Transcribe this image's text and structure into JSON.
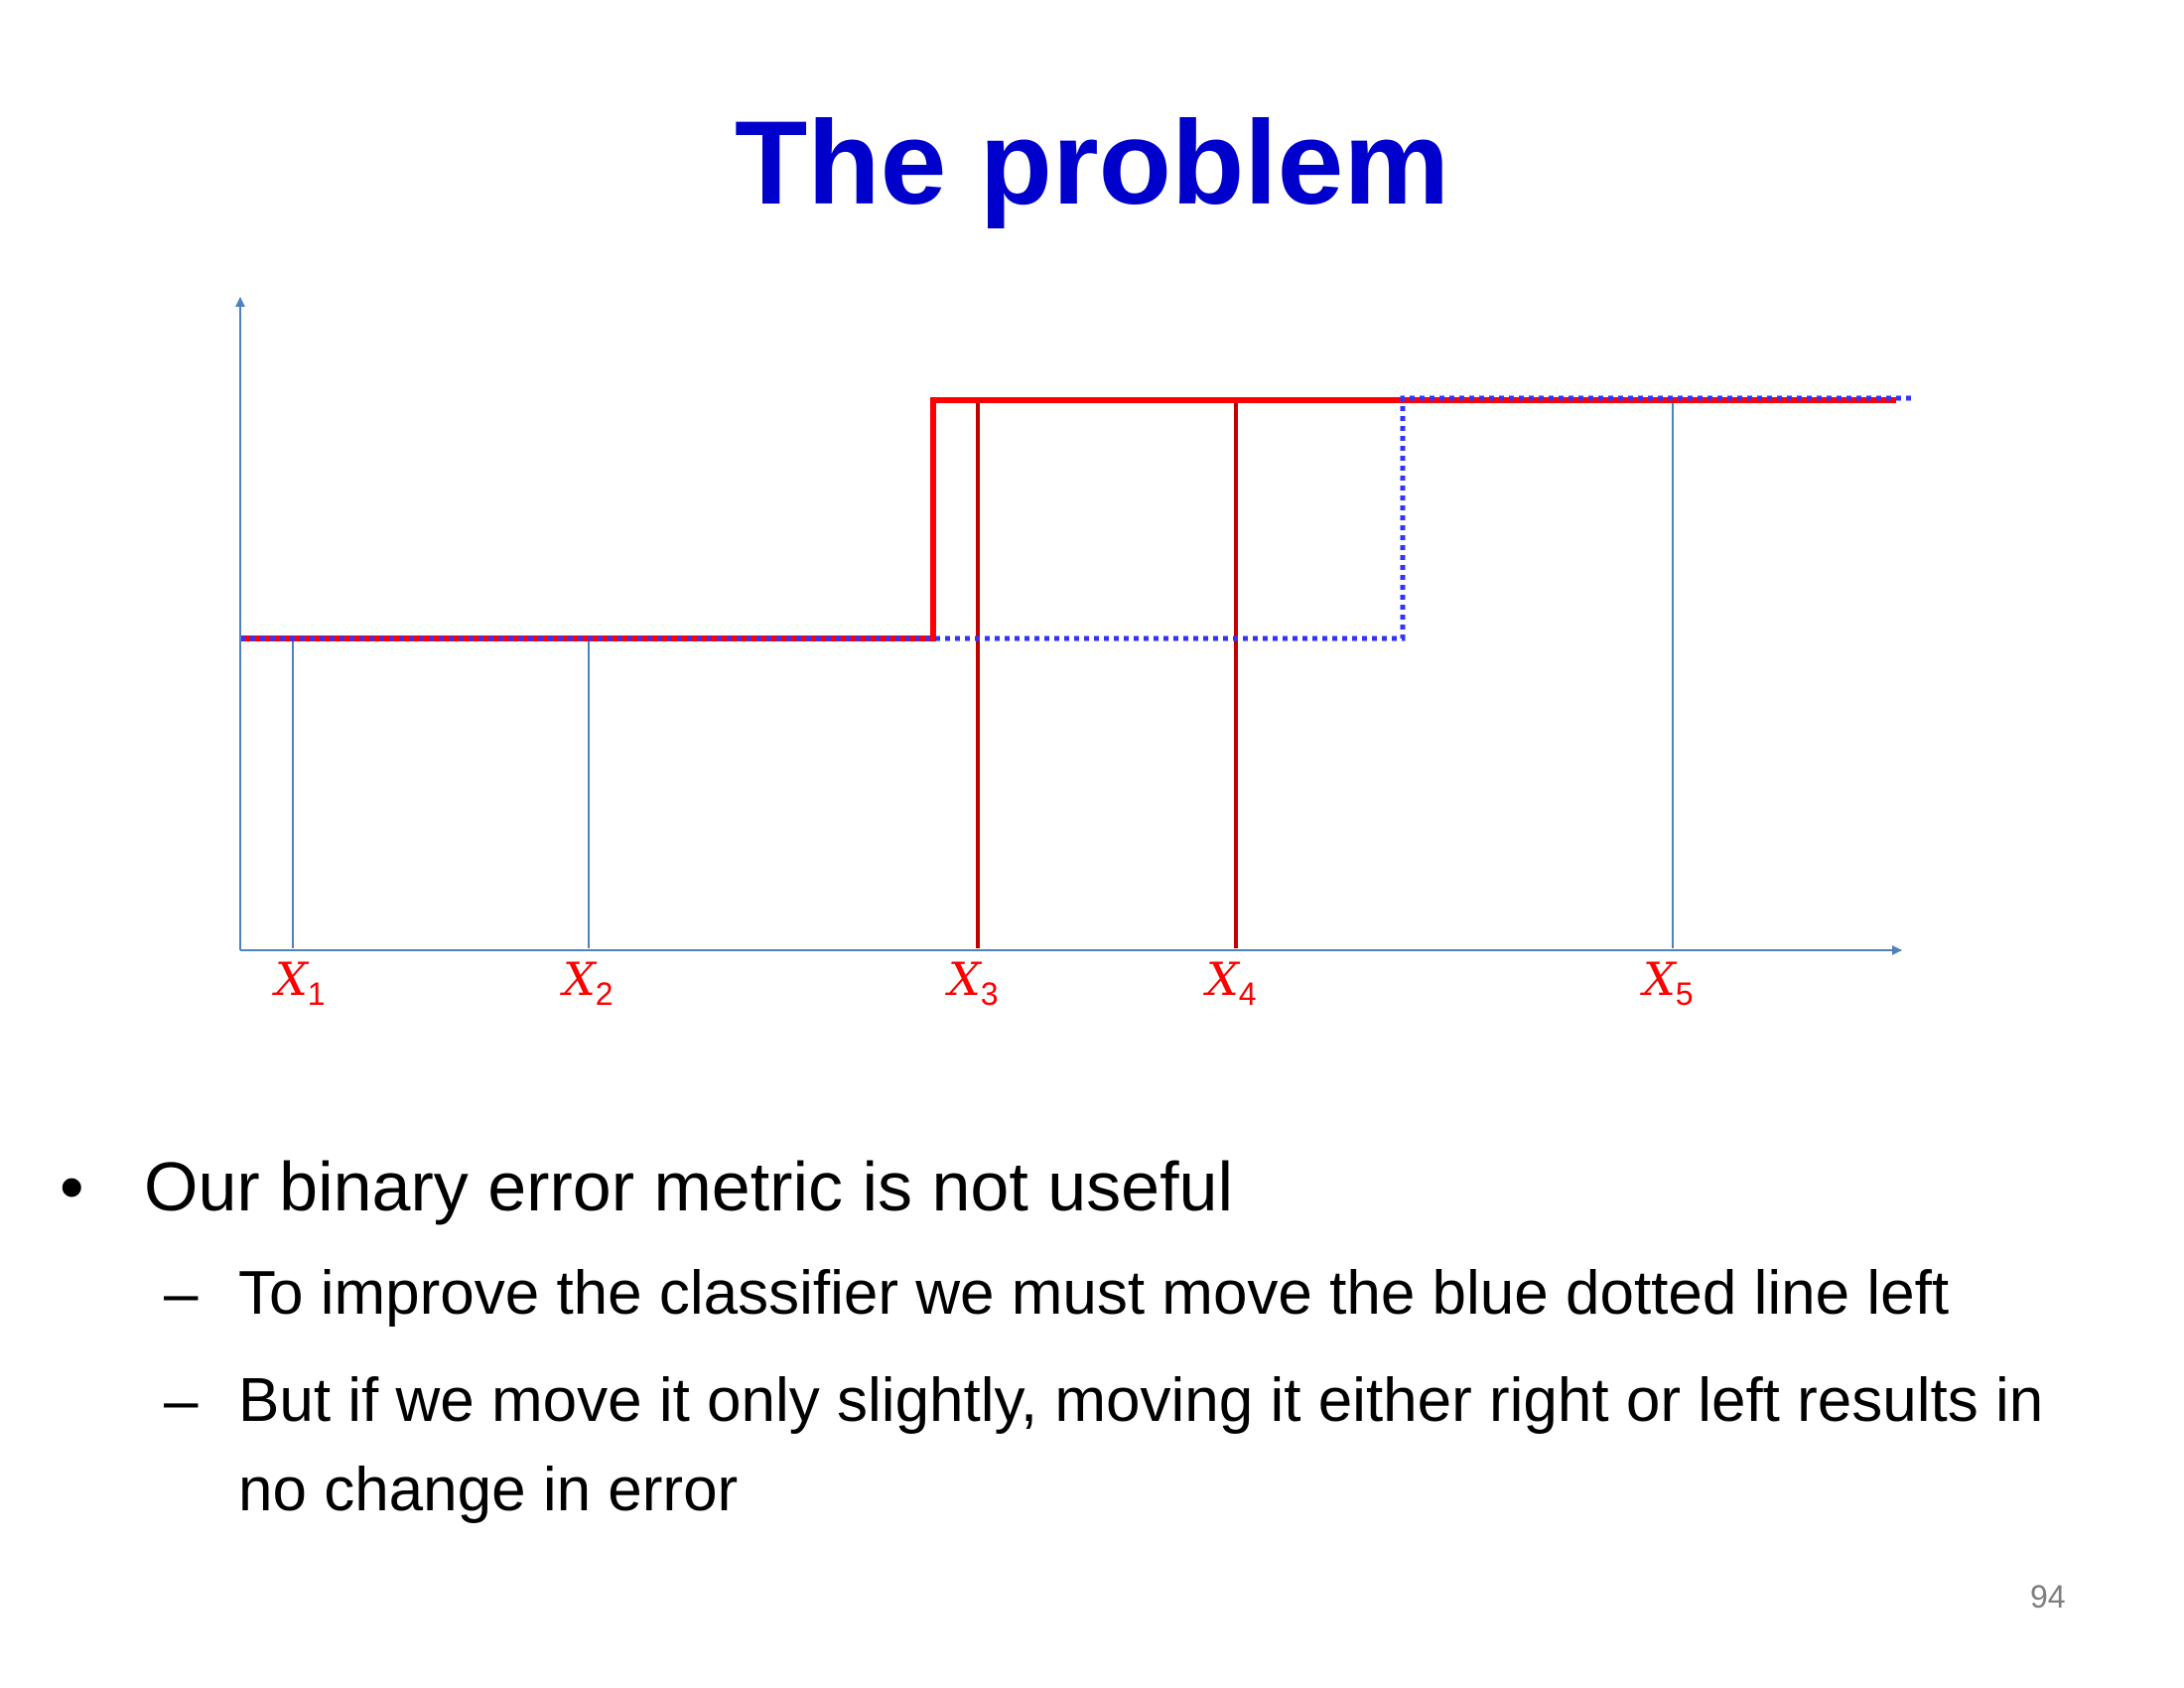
{
  "slide": {
    "title": "The problem",
    "page_number": "94"
  },
  "diagram": {
    "colors": {
      "axis": "#4f81bd",
      "red_step": "#ff0000",
      "blue_dotted": "#3333ff",
      "red_stems": "#c00000",
      "labels": "#ff0000"
    },
    "points": [
      {
        "name": "X1",
        "label_base": "X",
        "label_sub": "1",
        "class": "low"
      },
      {
        "name": "X2",
        "label_base": "X",
        "label_sub": "2",
        "class": "low"
      },
      {
        "name": "X3",
        "label_base": "X",
        "label_sub": "3",
        "class": "high"
      },
      {
        "name": "X4",
        "label_base": "X",
        "label_sub": "4",
        "class": "high"
      },
      {
        "name": "X5",
        "label_base": "X",
        "label_sub": "5",
        "class": "high"
      }
    ],
    "lines": {
      "red_solid_step": "solid",
      "blue_dotted_step": "dotted"
    }
  },
  "bullets": [
    {
      "text": "Our binary error metric is not useful",
      "sub": [
        "To improve the classifier we must move the blue dotted line left",
        "But if we move it only slightly, moving it either right or left results in no change in error"
      ]
    }
  ]
}
